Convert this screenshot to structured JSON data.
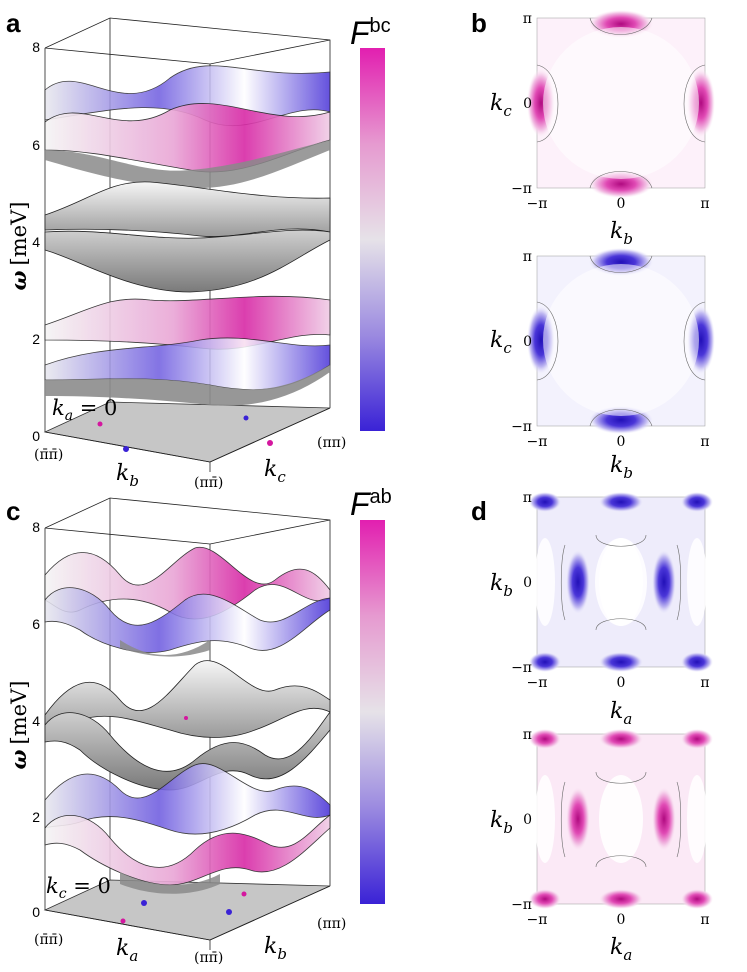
{
  "panels": {
    "a": {
      "label": "a",
      "y_axis": {
        "symbol": "ω",
        "unit": "[meV]",
        "ticks": [
          "0",
          "2",
          "4",
          "6",
          "8"
        ]
      },
      "plane_label": {
        "var": "k",
        "sub": "a",
        "eq": " = 0"
      },
      "axis_labels": {
        "left_var": "k",
        "left_sub": "b",
        "right_var": "k",
        "right_sub": "c"
      },
      "corners": {
        "left": "(π̄π̄)",
        "mid": "(ππ̄)",
        "right": "(ππ)"
      },
      "colorbar": {
        "var": "F",
        "sup": "bc"
      }
    },
    "b": {
      "label": "b",
      "maps": [
        {
          "tone": "magenta",
          "y_var": "k",
          "y_sub": "c",
          "x_var": "k",
          "x_sub": "b",
          "ticks_x": [
            "−π",
            "0",
            "π"
          ],
          "ticks_y": [
            "π",
            "0",
            "−π"
          ]
        },
        {
          "tone": "blue",
          "y_var": "k",
          "y_sub": "c",
          "x_var": "k",
          "x_sub": "b",
          "ticks_x": [
            "−π",
            "0",
            "π"
          ],
          "ticks_y": [
            "π",
            "0",
            "−π"
          ]
        }
      ]
    },
    "c": {
      "label": "c",
      "y_axis": {
        "symbol": "ω",
        "unit": "[meV]",
        "ticks": [
          "0",
          "2",
          "4",
          "6",
          "8"
        ]
      },
      "plane_label": {
        "var": "k",
        "sub": "c",
        "eq": " = 0"
      },
      "axis_labels": {
        "left_var": "k",
        "left_sub": "a",
        "right_var": "k",
        "right_sub": "b"
      },
      "corners": {
        "left": "(π̄π̄)",
        "mid": "(ππ̄)",
        "right": "(ππ)"
      },
      "colorbar": {
        "var": "F",
        "sup": "ab"
      }
    },
    "d": {
      "label": "d",
      "maps": [
        {
          "tone": "blue",
          "y_var": "k",
          "y_sub": "b",
          "x_var": "k",
          "x_sub": "a",
          "ticks_x": [
            "−π",
            "0",
            "π"
          ],
          "ticks_y": [
            "π",
            "0",
            "−π"
          ]
        },
        {
          "tone": "magenta",
          "y_var": "k",
          "y_sub": "b",
          "x_var": "k",
          "x_sub": "a",
          "ticks_x": [
            "−π",
            "0",
            "π"
          ],
          "ticks_y": [
            "π",
            "0",
            "−π"
          ]
        }
      ]
    }
  },
  "colors": {
    "magenta": "#d4179f",
    "magenta_light": "#f2b6e0",
    "blue": "#3a22d6",
    "blue_light": "#c2bcf2",
    "gray_surface": "#8c8c8c",
    "gray_light": "#eeeeee",
    "floor": "#c8c8c8"
  }
}
